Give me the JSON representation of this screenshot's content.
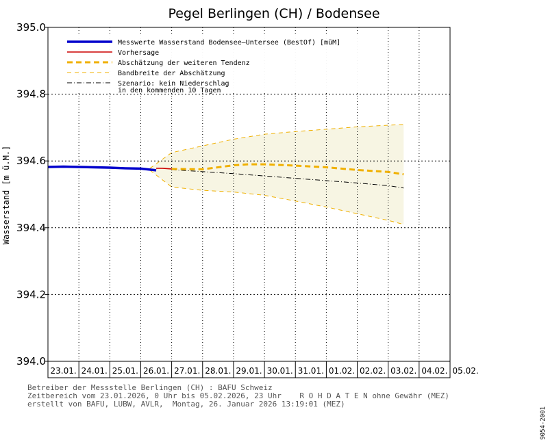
{
  "chart_data": {
    "type": "line",
    "title": "Pegel Berlingen (CH) / Bodensee",
    "ylabel": "Wasserstand [m ü.M.]",
    "ylim": [
      394.0,
      395.0
    ],
    "yticks": [
      "394.0",
      "394.2",
      "394.4",
      "394.6",
      "394.8",
      "395.0"
    ],
    "x_range_days": [
      0,
      13
    ],
    "x_tick_labels": [
      "23.01.",
      "24.01.",
      "25.01.",
      "26.01.",
      "27.01.",
      "28.01.",
      "29.01.",
      "30.01.",
      "31.01.",
      "01.02.",
      "02.02.",
      "03.02.",
      "04.02.",
      "05.02."
    ],
    "series": [
      {
        "name": "Messwerte Wasserstand Bodensee–Untersee (BestOf)  [müM]",
        "color": "#0000cc",
        "style": "solid-thick",
        "x": [
          0,
          0.5,
          1,
          1.5,
          2,
          2.5,
          3,
          3.3,
          3.5
        ],
        "y": [
          394.582,
          394.583,
          394.582,
          394.581,
          394.58,
          394.578,
          394.577,
          394.574,
          394.572
        ]
      },
      {
        "name": "Vorhersage",
        "color": "#cc0000",
        "style": "solid",
        "x": [
          3.5,
          3.7,
          4.0
        ],
        "y": [
          394.578,
          394.578,
          394.576
        ]
      },
      {
        "name": "Abschätzung der weiteren Tendenz",
        "color": "#f0b000",
        "style": "dashed-thick",
        "x": [
          4.0,
          5.0,
          6.0,
          6.5,
          7.0,
          8.0,
          9.0,
          10.0,
          11.0,
          11.5
        ],
        "y": [
          394.576,
          394.575,
          394.587,
          394.59,
          394.59,
          394.586,
          394.581,
          394.573,
          394.567,
          394.56
        ]
      },
      {
        "name": "Bandbreite der Abschätzung",
        "color": "#f0b000",
        "style": "dashed-thin",
        "upper": {
          "x": [
            3.3,
            4.0,
            5.0,
            6.0,
            7.0,
            8.0,
            9.0,
            10.0,
            11.0,
            11.5
          ],
          "y": [
            394.578,
            394.625,
            394.645,
            394.665,
            394.68,
            394.688,
            394.695,
            394.702,
            394.707,
            394.709
          ]
        },
        "lower": {
          "x": [
            3.3,
            4.0,
            5.0,
            6.0,
            7.0,
            8.0,
            9.0,
            10.0,
            11.0,
            11.5
          ],
          "y": [
            394.572,
            394.522,
            394.512,
            394.507,
            394.497,
            394.48,
            394.462,
            394.442,
            394.422,
            394.41
          ]
        }
      },
      {
        "name": "Szenario: kein Niederschlag in den kommenden 10 Tagen",
        "color": "#000000",
        "style": "dashdot",
        "x": [
          4.0,
          5.0,
          6.0,
          7.0,
          8.0,
          9.0,
          10.0,
          11.0,
          11.5
        ],
        "y": [
          394.574,
          394.568,
          394.562,
          394.555,
          394.548,
          394.541,
          394.534,
          394.526,
          394.519
        ]
      }
    ],
    "legend": {
      "measured": "Messwerte Wasserstand Bodensee–Untersee (BestOf)  [müM]",
      "forecast": "Vorhersage",
      "trend": "Abschätzung der weiteren Tendenz",
      "band": "Bandbreite der Abschätzung",
      "scenario_line1": "Szenario: kein Niederschlag",
      "scenario_line2": "in den kommenden 10 Tagen"
    },
    "legend_position": "top-left",
    "grid": true
  },
  "colors": {
    "measured": "#0000cc",
    "forecast": "#cc0000",
    "trend": "#f0b000",
    "band_fill": "#f7f5e3",
    "grid": "#000000"
  },
  "footer": {
    "line1": "Betreiber der Messstelle Berlingen (CH) : BAFU Schweiz",
    "line2": "Zeitbereich vom 23.01.2026, 0 Uhr bis 05.02.2026, 23 Uhr    R O H D A T E N ohne Gewähr (MEZ)",
    "line3": "erstellt von BAFU, LUBW, AVLR,  Montag, 26. Januar 2026 13:19:01 (MEZ)"
  },
  "side_code": "9054-2001"
}
